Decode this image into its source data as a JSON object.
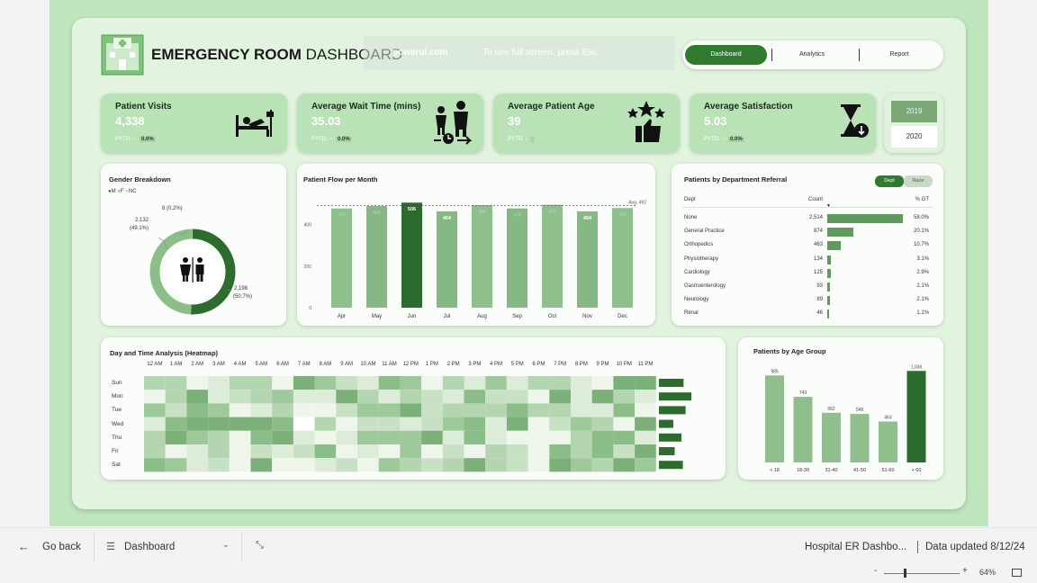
{
  "header": {
    "title_bold": "EMERGENCY ROOM",
    "title_light": "DASHBOARD",
    "overlay_text_1": "powerui.com",
    "overlay_text_2": "To see full screen, press Esc",
    "nav": {
      "dashboard": "Dashboard",
      "analytics": "Analytics",
      "report": "Report"
    }
  },
  "kpis": [
    {
      "title": "Patient Visits",
      "value": "4,338",
      "pytd_label": "PYTD: --",
      "pytd_value": "0.0%",
      "icon": "hospital-bed-icon"
    },
    {
      "title": "Average Wait Time (mins)",
      "value": "35.03",
      "pytd_label": "PYTD: --",
      "pytd_value": "0.0%",
      "icon": "waiting-people-clock-icon"
    },
    {
      "title": "Average Patient Age",
      "value": "39",
      "pytd_label": "PYTD: --",
      "pytd_value": "",
      "icon": "rating-stars-thumb-icon"
    },
    {
      "title": "Average Satisfaction",
      "value": "5.03",
      "pytd_label": "PYTD: --",
      "pytd_value": "0.0%",
      "icon": "hourglass-icon"
    }
  ],
  "years": [
    "2019",
    "2020"
  ],
  "gender": {
    "title": "Gender Breakdown",
    "legend": [
      "M",
      "F",
      "NC"
    ],
    "nc_label": "8 (0.2%)",
    "f_label_1": "2,132",
    "f_label_2": "(49.1%)",
    "m_label_1": "2,198",
    "m_label_2": "(50.7%)",
    "icon": "restroom-icon"
  },
  "flow": {
    "title": "Patient Flow per Month",
    "avg_label": "Avg. 492"
  },
  "dept": {
    "title": "Patients by Department Referral",
    "toggle": [
      "Dept",
      "Race"
    ],
    "headers": [
      "Dept",
      "Count",
      "% GT"
    ],
    "rows": [
      {
        "name": "None",
        "count": "2,514",
        "pct": "58.0%",
        "v": 2514
      },
      {
        "name": "General Practice",
        "count": "874",
        "pct": "20.1%",
        "v": 874
      },
      {
        "name": "Orthopedics",
        "count": "463",
        "pct": "10.7%",
        "v": 463
      },
      {
        "name": "Physiotherapy",
        "count": "134",
        "pct": "3.1%",
        "v": 134
      },
      {
        "name": "Cardiology",
        "count": "125",
        "pct": "2.9%",
        "v": 125
      },
      {
        "name": "Gastroenterology",
        "count": "93",
        "pct": "2.1%",
        "v": 93
      },
      {
        "name": "Neurology",
        "count": "89",
        "pct": "2.1%",
        "v": 89
      },
      {
        "name": "Renal",
        "count": "46",
        "pct": "1.1%",
        "v": 46
      }
    ]
  },
  "heatmap": {
    "title": "Day and Time Analysis (Heatmap)",
    "hours": [
      "12 AM",
      "1 AM",
      "2 AM",
      "3 AM",
      "4 AM",
      "5 AM",
      "6 AM",
      "7 AM",
      "8 AM",
      "9 AM",
      "10 AM",
      "11 AM",
      "12 PM",
      "1 PM",
      "2 PM",
      "3 PM",
      "4 PM",
      "5 PM",
      "6 PM",
      "7 PM",
      "8 PM",
      "9 PM",
      "10 PM",
      "11 PM"
    ],
    "days": [
      "Sun",
      "Mon",
      "Tue",
      "Wed",
      "Thu",
      "Fri",
      "Sat"
    ],
    "day_totals": [
      0.72,
      0.95,
      0.78,
      0.42,
      0.66,
      0.46,
      0.7
    ]
  },
  "age": {
    "title": "Patients by Age Group"
  },
  "bottom": {
    "go_back": "Go back",
    "page": "Dashboard",
    "report_name": "Hospital ER Dashbo...",
    "updated": "Data updated 8/12/24",
    "zoom": "64%"
  },
  "chart_data": [
    {
      "type": "bar",
      "title": "Patient Flow per Month",
      "categories": [
        "Apr",
        "May",
        "Jun",
        "Jul",
        "Aug",
        "Sep",
        "Oct",
        "Nov",
        "Dec"
      ],
      "values": [
        478,
        490,
        506,
        464,
        494,
        478,
        496,
        464,
        480
      ],
      "data_labels": {
        "Jun": "506",
        "Jul": "464",
        "Nov": "464"
      },
      "highlight": "Jun",
      "average": 492,
      "ylim": [
        0,
        520
      ],
      "yticks": [
        0,
        200,
        400
      ],
      "grid": false
    },
    {
      "type": "pie",
      "title": "Gender Breakdown",
      "categories": [
        "M",
        "F",
        "NC"
      ],
      "values": [
        2198,
        2132,
        8
      ],
      "percent": [
        50.7,
        49.1,
        0.2
      ]
    },
    {
      "type": "bar",
      "title": "Patients by Age Group",
      "categories": [
        "< 18",
        "18-30",
        "31-40",
        "41-50",
        "51-60",
        "+ 60"
      ],
      "values": [
        985,
        743,
        562,
        549,
        463,
        1036
      ],
      "highlight": "+ 60",
      "ylim": [
        0,
        1100
      ]
    }
  ]
}
